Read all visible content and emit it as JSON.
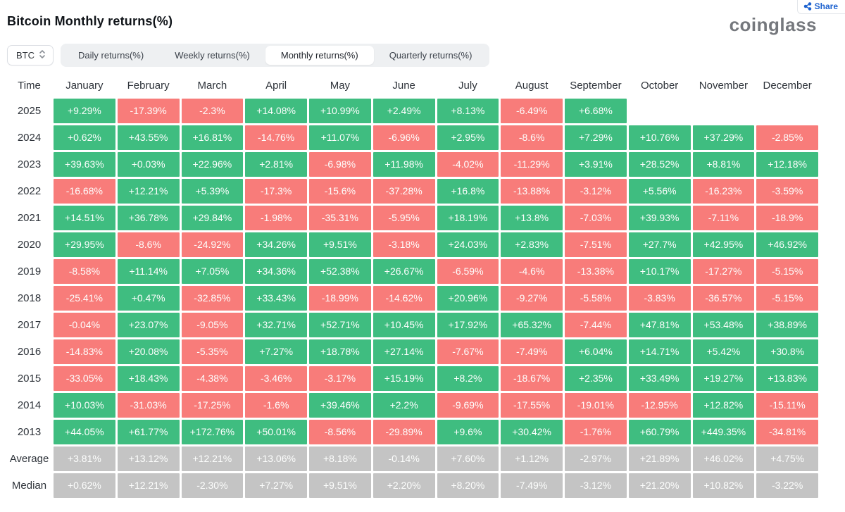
{
  "header": {
    "title": "Bitcoin Monthly returns(%)",
    "logo": "coinglass",
    "share_label": "Share"
  },
  "controls": {
    "symbol": "BTC",
    "symbol_select_icon": "chevron-up-down-icon",
    "tabs": [
      {
        "label": "Daily returns(%)",
        "selected": false
      },
      {
        "label": "Weekly returns(%)",
        "selected": false
      },
      {
        "label": "Monthly returns(%)",
        "selected": true
      },
      {
        "label": "Quarterly returns(%)",
        "selected": false
      }
    ]
  },
  "colors": {
    "positive": "#3fbd80",
    "negative": "#f87c7a",
    "summary": "#c4c4c4",
    "accent": "#1d62cf"
  },
  "chart_data": {
    "type": "heatmap",
    "title": "Bitcoin Monthly returns(%)",
    "x_labels": [
      "January",
      "February",
      "March",
      "April",
      "May",
      "June",
      "July",
      "August",
      "September",
      "October",
      "November",
      "December"
    ],
    "y_labels": [
      "2025",
      "2024",
      "2023",
      "2022",
      "2021",
      "2020",
      "2019",
      "2018",
      "2017",
      "2016",
      "2015",
      "2014",
      "2013",
      "Average",
      "Median"
    ],
    "values_pct": [
      [
        9.29,
        -17.39,
        -2.3,
        14.08,
        10.99,
        2.49,
        8.13,
        -6.49,
        6.68,
        null,
        null,
        null
      ],
      [
        0.62,
        43.55,
        16.81,
        -14.76,
        11.07,
        -6.96,
        2.95,
        -8.6,
        7.29,
        10.76,
        37.29,
        -2.85
      ],
      [
        39.63,
        0.03,
        22.96,
        2.81,
        -6.98,
        11.98,
        -4.02,
        -11.29,
        3.91,
        28.52,
        8.81,
        12.18
      ],
      [
        -16.68,
        12.21,
        5.39,
        -17.3,
        -15.6,
        -37.28,
        16.8,
        -13.88,
        -3.12,
        5.56,
        -16.23,
        -3.59
      ],
      [
        14.51,
        36.78,
        29.84,
        -1.98,
        -35.31,
        -5.95,
        18.19,
        13.8,
        -7.03,
        39.93,
        -7.11,
        -18.9
      ],
      [
        29.95,
        -8.6,
        -24.92,
        34.26,
        9.51,
        -3.18,
        24.03,
        2.83,
        -7.51,
        27.7,
        42.95,
        46.92
      ],
      [
        -8.58,
        11.14,
        7.05,
        34.36,
        52.38,
        26.67,
        -6.59,
        -4.6,
        -13.38,
        10.17,
        -17.27,
        -5.15
      ],
      [
        -25.41,
        0.47,
        -32.85,
        33.43,
        -18.99,
        -14.62,
        20.96,
        -9.27,
        -5.58,
        -3.83,
        -36.57,
        -5.15
      ],
      [
        -0.04,
        23.07,
        -9.05,
        32.71,
        52.71,
        10.45,
        17.92,
        65.32,
        -7.44,
        47.81,
        53.48,
        38.89
      ],
      [
        -14.83,
        20.08,
        -5.35,
        7.27,
        18.78,
        27.14,
        -7.67,
        -7.49,
        6.04,
        14.71,
        5.42,
        30.8
      ],
      [
        -33.05,
        18.43,
        -4.38,
        -3.46,
        -3.17,
        15.19,
        8.2,
        -18.67,
        2.35,
        33.49,
        19.27,
        13.83
      ],
      [
        10.03,
        -31.03,
        -17.25,
        -1.6,
        39.46,
        2.2,
        -9.69,
        -17.55,
        -19.01,
        -12.95,
        12.82,
        -15.11
      ],
      [
        44.05,
        61.77,
        172.76,
        50.01,
        -8.56,
        -29.89,
        9.6,
        30.42,
        -1.76,
        60.79,
        449.35,
        -34.81
      ],
      [
        3.81,
        13.12,
        12.21,
        13.06,
        8.18,
        -0.14,
        7.6,
        1.12,
        -2.97,
        21.89,
        46.02,
        4.75
      ],
      [
        0.62,
        12.21,
        -2.3,
        7.27,
        9.51,
        2.2,
        8.2,
        -7.49,
        -3.12,
        21.2,
        10.82,
        -3.22
      ]
    ]
  },
  "table": {
    "time_header": "Time",
    "months": [
      "January",
      "February",
      "March",
      "April",
      "May",
      "June",
      "July",
      "August",
      "September",
      "October",
      "November",
      "December"
    ],
    "rows": [
      {
        "label": "2025",
        "type": "year",
        "values": [
          "+9.29%",
          "-17.39%",
          "-2.3%",
          "+14.08%",
          "+10.99%",
          "+2.49%",
          "+8.13%",
          "-6.49%",
          "+6.68%",
          "",
          "",
          ""
        ]
      },
      {
        "label": "2024",
        "type": "year",
        "values": [
          "+0.62%",
          "+43.55%",
          "+16.81%",
          "-14.76%",
          "+11.07%",
          "-6.96%",
          "+2.95%",
          "-8.6%",
          "+7.29%",
          "+10.76%",
          "+37.29%",
          "-2.85%"
        ]
      },
      {
        "label": "2023",
        "type": "year",
        "values": [
          "+39.63%",
          "+0.03%",
          "+22.96%",
          "+2.81%",
          "-6.98%",
          "+11.98%",
          "-4.02%",
          "-11.29%",
          "+3.91%",
          "+28.52%",
          "+8.81%",
          "+12.18%"
        ]
      },
      {
        "label": "2022",
        "type": "year",
        "values": [
          "-16.68%",
          "+12.21%",
          "+5.39%",
          "-17.3%",
          "-15.6%",
          "-37.28%",
          "+16.8%",
          "-13.88%",
          "-3.12%",
          "+5.56%",
          "-16.23%",
          "-3.59%"
        ]
      },
      {
        "label": "2021",
        "type": "year",
        "values": [
          "+14.51%",
          "+36.78%",
          "+29.84%",
          "-1.98%",
          "-35.31%",
          "-5.95%",
          "+18.19%",
          "+13.8%",
          "-7.03%",
          "+39.93%",
          "-7.11%",
          "-18.9%"
        ]
      },
      {
        "label": "2020",
        "type": "year",
        "values": [
          "+29.95%",
          "-8.6%",
          "-24.92%",
          "+34.26%",
          "+9.51%",
          "-3.18%",
          "+24.03%",
          "+2.83%",
          "-7.51%",
          "+27.7%",
          "+42.95%",
          "+46.92%"
        ]
      },
      {
        "label": "2019",
        "type": "year",
        "values": [
          "-8.58%",
          "+11.14%",
          "+7.05%",
          "+34.36%",
          "+52.38%",
          "+26.67%",
          "-6.59%",
          "-4.6%",
          "-13.38%",
          "+10.17%",
          "-17.27%",
          "-5.15%"
        ]
      },
      {
        "label": "2018",
        "type": "year",
        "values": [
          "-25.41%",
          "+0.47%",
          "-32.85%",
          "+33.43%",
          "-18.99%",
          "-14.62%",
          "+20.96%",
          "-9.27%",
          "-5.58%",
          "-3.83%",
          "-36.57%",
          "-5.15%"
        ]
      },
      {
        "label": "2017",
        "type": "year",
        "values": [
          "-0.04%",
          "+23.07%",
          "-9.05%",
          "+32.71%",
          "+52.71%",
          "+10.45%",
          "+17.92%",
          "+65.32%",
          "-7.44%",
          "+47.81%",
          "+53.48%",
          "+38.89%"
        ]
      },
      {
        "label": "2016",
        "type": "year",
        "values": [
          "-14.83%",
          "+20.08%",
          "-5.35%",
          "+7.27%",
          "+18.78%",
          "+27.14%",
          "-7.67%",
          "-7.49%",
          "+6.04%",
          "+14.71%",
          "+5.42%",
          "+30.8%"
        ]
      },
      {
        "label": "2015",
        "type": "year",
        "values": [
          "-33.05%",
          "+18.43%",
          "-4.38%",
          "-3.46%",
          "-3.17%",
          "+15.19%",
          "+8.2%",
          "-18.67%",
          "+2.35%",
          "+33.49%",
          "+19.27%",
          "+13.83%"
        ]
      },
      {
        "label": "2014",
        "type": "year",
        "values": [
          "+10.03%",
          "-31.03%",
          "-17.25%",
          "-1.6%",
          "+39.46%",
          "+2.2%",
          "-9.69%",
          "-17.55%",
          "-19.01%",
          "-12.95%",
          "+12.82%",
          "-15.11%"
        ]
      },
      {
        "label": "2013",
        "type": "year",
        "values": [
          "+44.05%",
          "+61.77%",
          "+172.76%",
          "+50.01%",
          "-8.56%",
          "-29.89%",
          "+9.6%",
          "+30.42%",
          "-1.76%",
          "+60.79%",
          "+449.35%",
          "-34.81%"
        ]
      },
      {
        "label": "Average",
        "type": "summary",
        "values": [
          "+3.81%",
          "+13.12%",
          "+12.21%",
          "+13.06%",
          "+8.18%",
          "-0.14%",
          "+7.60%",
          "+1.12%",
          "-2.97%",
          "+21.89%",
          "+46.02%",
          "+4.75%"
        ]
      },
      {
        "label": "Median",
        "type": "summary",
        "values": [
          "+0.62%",
          "+12.21%",
          "-2.30%",
          "+7.27%",
          "+9.51%",
          "+2.20%",
          "+8.20%",
          "-7.49%",
          "-3.12%",
          "+21.20%",
          "+10.82%",
          "-3.22%"
        ]
      }
    ]
  }
}
